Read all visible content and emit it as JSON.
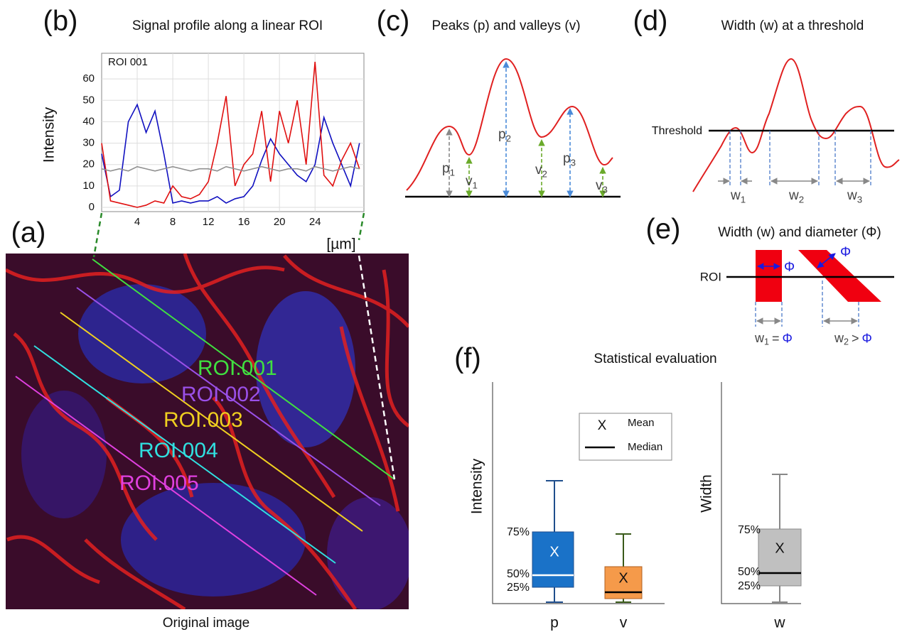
{
  "panel_a": {
    "label": "(a)",
    "rois": [
      "ROI.001",
      "ROI.002",
      "ROI.003",
      "ROI.004",
      "ROI.005"
    ],
    "caption": "Original image"
  },
  "panel_b": {
    "label": "(b)",
    "title": "Signal profile along a linear ROI",
    "roi": "ROI 001",
    "y_label": "Intensity",
    "x_label": "[µm]",
    "xlim": [
      0,
      29.5
    ],
    "ylim": [
      -2,
      72
    ],
    "xticks": [
      4,
      8,
      12,
      16,
      20,
      24
    ],
    "yticks": [
      0,
      10,
      20,
      30,
      40,
      50,
      60
    ],
    "grid": true,
    "x": [
      0,
      1,
      2,
      3,
      4,
      5,
      6,
      7,
      8,
      9,
      10,
      11,
      12,
      13,
      14,
      15,
      16,
      17,
      18,
      19,
      20,
      21,
      22,
      23,
      24,
      25,
      26,
      27,
      28,
      29
    ],
    "series": [
      {
        "color": "#1010c0",
        "values": [
          25,
          5,
          8,
          40,
          48,
          35,
          45,
          25,
          2,
          3,
          2,
          3,
          3,
          5,
          2,
          4,
          5,
          10,
          22,
          32,
          25,
          20,
          15,
          12,
          20,
          42,
          30,
          20,
          10,
          30
        ]
      },
      {
        "color": "#e01010",
        "values": [
          30,
          3,
          2,
          1,
          0,
          1,
          3,
          2,
          10,
          5,
          4,
          6,
          12,
          30,
          52,
          10,
          20,
          25,
          45,
          12,
          45,
          30,
          50,
          20,
          68,
          15,
          10,
          22,
          30,
          18
        ]
      },
      {
        "color": "#909090",
        "values": [
          18,
          17,
          18,
          17,
          19,
          18,
          17,
          18,
          19,
          18,
          17,
          18,
          18,
          17,
          19,
          18,
          17,
          18,
          19,
          18,
          17,
          18,
          18,
          17,
          19,
          18,
          17,
          18,
          19,
          18
        ]
      }
    ]
  },
  "panel_c": {
    "label": "(c)",
    "title": "Peaks (p) and valleys (v)",
    "peaks": [
      {
        "base": "p",
        "sub": "1"
      },
      {
        "base": "p",
        "sub": "2"
      },
      {
        "base": "p",
        "sub": "3"
      }
    ],
    "valleys": [
      {
        "base": "v",
        "sub": "1"
      },
      {
        "base": "v",
        "sub": "2"
      },
      {
        "base": "v",
        "sub": "3"
      }
    ]
  },
  "panel_d": {
    "label": "(d)",
    "title": "Width (w) at a threshold",
    "threshold": "Threshold",
    "widths": [
      {
        "base": "w",
        "sub": "1"
      },
      {
        "base": "w",
        "sub": "2"
      },
      {
        "base": "w",
        "sub": "3"
      }
    ]
  },
  "panel_e": {
    "label": "(e)",
    "title": "Width (w) and diameter (Φ)",
    "roi": "ROI",
    "diameter": "Φ",
    "widths": [
      {
        "base": "w",
        "sub": "1",
        "relation": "="
      },
      {
        "base": "w",
        "sub": "2",
        "relation": ">"
      }
    ]
  },
  "panel_f": {
    "label": "(f)",
    "title": "Statistical evaluation",
    "mean_symbol": "X",
    "mean": "Mean",
    "median": "Median",
    "intensity_label": "Intensity",
    "width_label": "Width",
    "percentiles": [
      "75%",
      "50%",
      "25%"
    ],
    "categories": [
      "p",
      "v",
      "w"
    ]
  }
}
